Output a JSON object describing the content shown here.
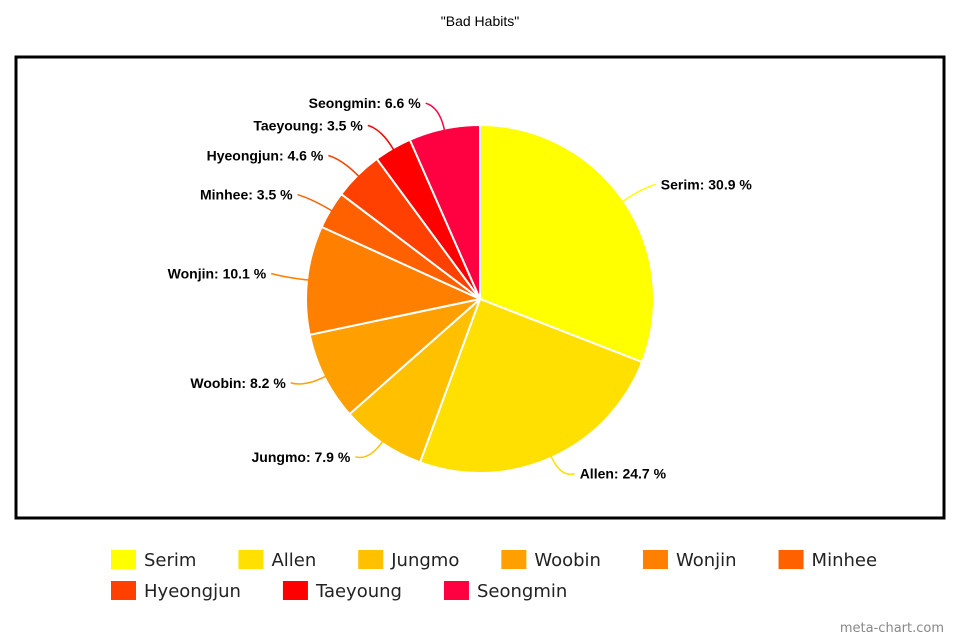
{
  "credit": "meta-chart.com",
  "chart_data": {
    "type": "pie",
    "title": "\"Bad Habits\"",
    "label_suffix": " %",
    "legend_position": "bottom",
    "slices": [
      {
        "name": "Serim",
        "value": 30.9,
        "color": "#FFFF00"
      },
      {
        "name": "Allen",
        "value": 24.7,
        "color": "#FFE000"
      },
      {
        "name": "Jungmo",
        "value": 7.9,
        "color": "#FFC000"
      },
      {
        "name": "Woobin",
        "value": 8.2,
        "color": "#FF9F00"
      },
      {
        "name": "Wonjin",
        "value": 10.1,
        "color": "#FF8000"
      },
      {
        "name": "Minhee",
        "value": 3.5,
        "color": "#FF6000"
      },
      {
        "name": "Hyeongjun",
        "value": 4.6,
        "color": "#FF4000"
      },
      {
        "name": "Taeyoung",
        "value": 3.5,
        "color": "#FF0000"
      },
      {
        "name": "Seongmin",
        "value": 6.6,
        "color": "#FF0040"
      }
    ]
  }
}
